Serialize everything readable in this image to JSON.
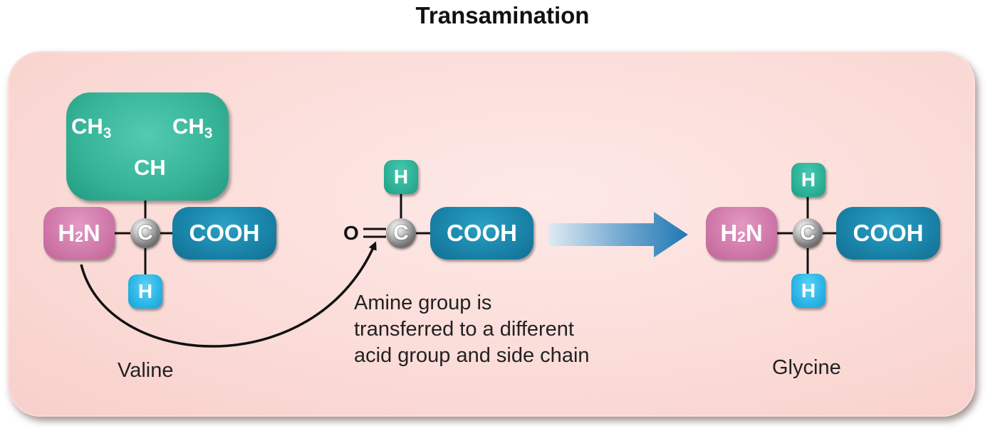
{
  "title": "Transamination",
  "valine": {
    "name": "Valine",
    "side_chain": {
      "left": "CH",
      "left_sub": "3",
      "right": "CH",
      "right_sub": "3",
      "center": "CH"
    },
    "amine": {
      "main": "H",
      "sub": "2",
      "tail": "N"
    },
    "carbon": "C",
    "carboxyl": "COOH",
    "hydrogen": "H"
  },
  "keto_acid": {
    "oxygen": "O",
    "carbon": "C",
    "carboxyl": "COOH",
    "hydrogen": "H"
  },
  "glycine": {
    "name": "Glycine",
    "amine": {
      "main": "H",
      "sub": "2",
      "tail": "N"
    },
    "carbon": "C",
    "carboxyl": "COOH",
    "hydrogen_top": "H",
    "hydrogen_bottom": "H"
  },
  "caption": {
    "line1": "Amine group is",
    "line2": "transferred to a different",
    "line3": "acid group and side chain"
  },
  "colors": {
    "carboxyl": "#1a85aa",
    "amine": "#cf78a9",
    "side_chain": "#36b398",
    "hydrogen_teal": "#2db197",
    "hydrogen_blue": "#2bb5e6",
    "arrow": "#1f78b4",
    "panel": "#fbdcd8"
  }
}
